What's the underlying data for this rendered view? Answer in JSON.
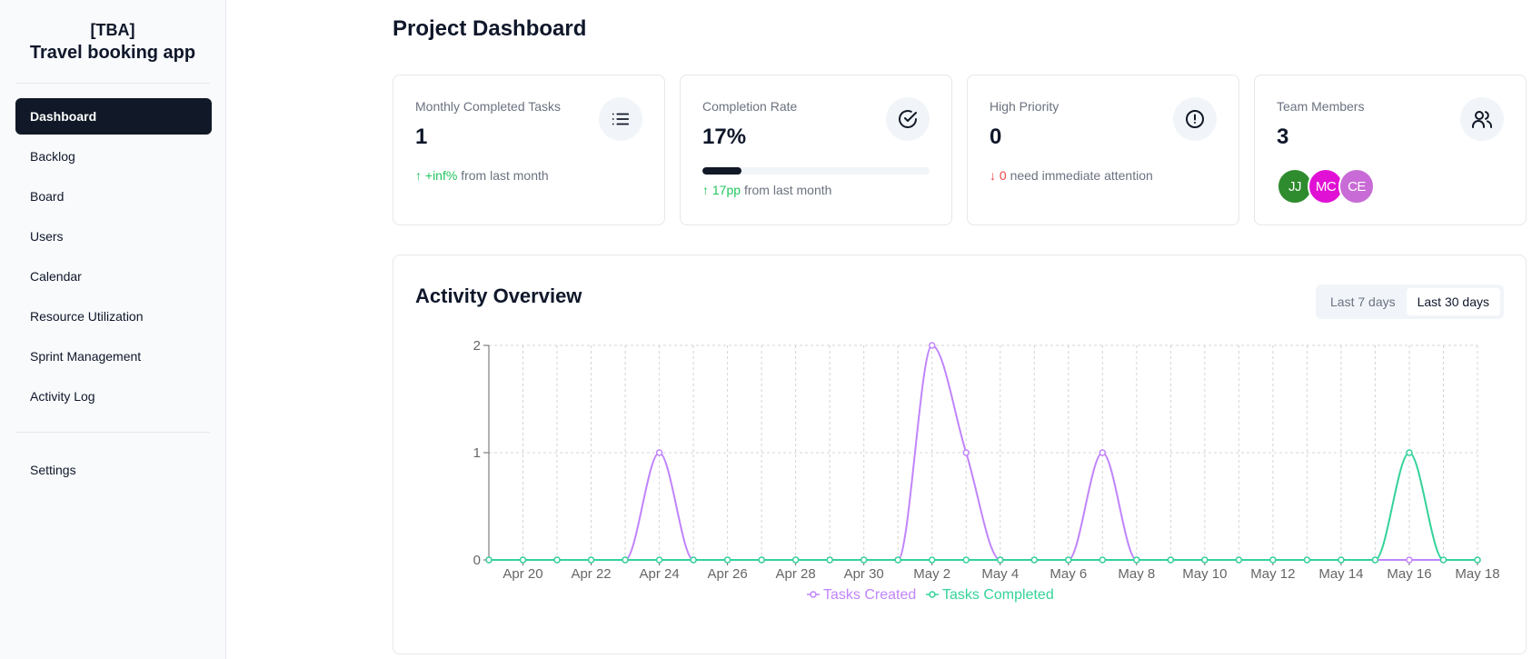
{
  "sidebar": {
    "brand_code": "[TBA]",
    "brand_name": "Travel booking app",
    "items": [
      {
        "label": "Dashboard",
        "active": true
      },
      {
        "label": "Backlog"
      },
      {
        "label": "Board"
      },
      {
        "label": "Users"
      },
      {
        "label": "Calendar"
      },
      {
        "label": "Resource Utilization"
      },
      {
        "label": "Sprint Management"
      },
      {
        "label": "Activity Log"
      }
    ],
    "settings_label": "Settings"
  },
  "page_title": "Project Dashboard",
  "cards": {
    "monthly": {
      "title": "Monthly Completed Tasks",
      "value": "1",
      "change": "+inf%",
      "suffix": "from last month",
      "icon": "list-icon"
    },
    "completion": {
      "title": "Completion Rate",
      "value": "17%",
      "progress": 0.17,
      "change": "17pp",
      "suffix": "from last month",
      "icon": "check-circle-icon"
    },
    "priority": {
      "title": "High Priority",
      "value": "0",
      "change": "0",
      "suffix": "need immediate attention",
      "icon": "alert-circle-icon"
    },
    "team": {
      "title": "Team Members",
      "value": "3",
      "icon": "users-icon",
      "members": [
        {
          "initials": "JJ",
          "color": "#2e8b2e"
        },
        {
          "initials": "MC",
          "color": "#e011d4"
        },
        {
          "initials": "CE",
          "color": "#c86bd6"
        }
      ]
    }
  },
  "activity": {
    "title": "Activity Overview",
    "ranges": [
      {
        "label": "Last 7 days",
        "active": false
      },
      {
        "label": "Last 30 days",
        "active": true
      }
    ]
  },
  "colors": {
    "created": "#c084fc",
    "completed": "#34d399"
  },
  "chart_data": {
    "type": "line",
    "x": [
      "Apr 19",
      "Apr 20",
      "Apr 21",
      "Apr 22",
      "Apr 23",
      "Apr 24",
      "Apr 25",
      "Apr 26",
      "Apr 27",
      "Apr 28",
      "Apr 29",
      "Apr 30",
      "May 1",
      "May 2",
      "May 3",
      "May 4",
      "May 5",
      "May 6",
      "May 7",
      "May 8",
      "May 9",
      "May 10",
      "May 11",
      "May 12",
      "May 13",
      "May 14",
      "May 15",
      "May 16",
      "May 17",
      "May 18"
    ],
    "tick_labels": [
      "Apr 20",
      "Apr 22",
      "Apr 24",
      "Apr 26",
      "Apr 28",
      "Apr 30",
      "May 2",
      "May 4",
      "May 6",
      "May 8",
      "May 10",
      "May 12",
      "May 14",
      "May 16",
      "May 18"
    ],
    "series": [
      {
        "name": "Tasks Created",
        "values": [
          0,
          0,
          0,
          0,
          0,
          1,
          0,
          0,
          0,
          0,
          0,
          0,
          0,
          2,
          1,
          0,
          0,
          0,
          1,
          0,
          0,
          0,
          0,
          0,
          0,
          0,
          0,
          0,
          0,
          0
        ]
      },
      {
        "name": "Tasks Completed",
        "values": [
          0,
          0,
          0,
          0,
          0,
          0,
          0,
          0,
          0,
          0,
          0,
          0,
          0,
          0,
          0,
          0,
          0,
          0,
          0,
          0,
          0,
          0,
          0,
          0,
          0,
          0,
          0,
          1,
          0,
          0
        ]
      }
    ],
    "yticks": [
      0,
      1,
      2
    ],
    "ylim": [
      0,
      2
    ],
    "grid": true,
    "legend": "bottom"
  }
}
